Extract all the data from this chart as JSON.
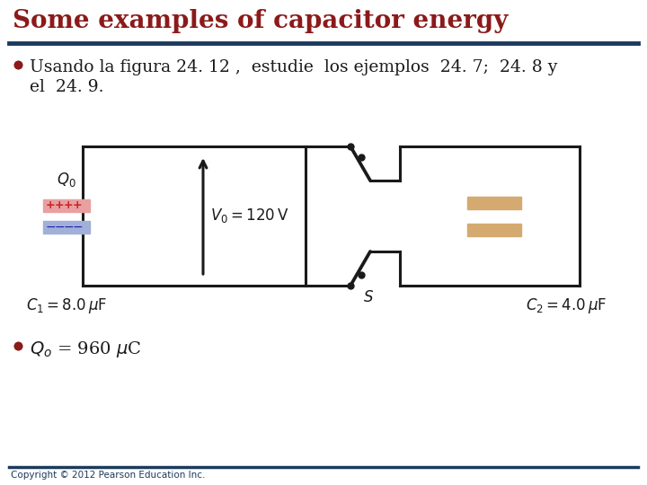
{
  "title": "Some examples of capacitor energy",
  "title_color": "#8B1A1A",
  "title_fontsize": 20,
  "header_line_color": "#1B3A5C",
  "bullet1_line1": "Usando la figura 24. 12 ,  estudie  los ejemplos  24. 7;  24. 8 y",
  "bullet1_line2": "el  24. 9.",
  "bullet_color": "#1a1a1a",
  "bullet_dot_color": "#8B1A1A",
  "text_fontsize": 13.5,
  "footer_text": "Copyright © 2012 Pearson Education Inc.",
  "footer_color": "#1B3A5C",
  "bg_color": "#FFFFFF",
  "circuit_line_color": "#1a1a1a",
  "capacitor1_plus_color": "#e8a0a0",
  "capacitor1_minus_color": "#a0b0d8",
  "capacitor2_color": "#D4AA70",
  "label_C1": "$C_1 = 8.0\\,\\mu\\mathrm{F}$",
  "label_C2": "$C_2 = 4.0\\,\\mu\\mathrm{F}$",
  "label_V0": "$V_0 = 120\\,\\mathrm{V}$",
  "label_Q0": "$Q_0$",
  "label_S": "$S$"
}
